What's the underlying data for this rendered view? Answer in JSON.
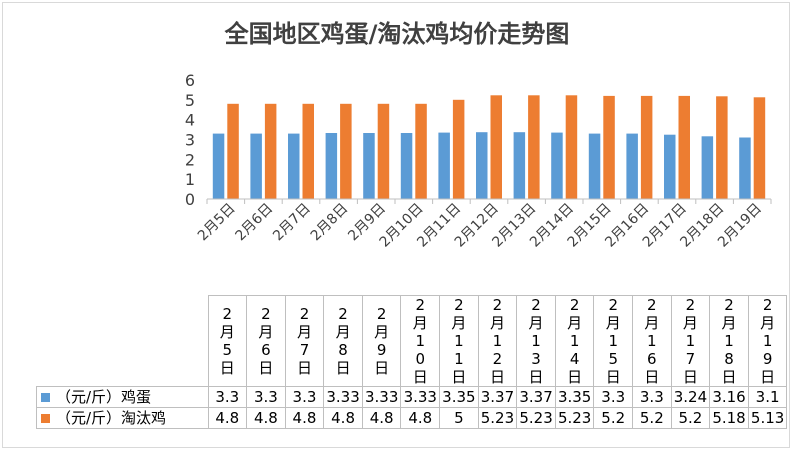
{
  "chart_data": {
    "type": "bar",
    "title": "全国地区鸡蛋/淘汰鸡均价走势图",
    "categories": [
      "2月5日",
      "2月6日",
      "2月7日",
      "2月8日",
      "2月9日",
      "2月10日",
      "2月11日",
      "2月12日",
      "2月13日",
      "2月14日",
      "2月15日",
      "2月16日",
      "2月17日",
      "2月18日",
      "2月19日"
    ],
    "series": [
      {
        "name": "（元/斤）鸡蛋",
        "color": "#5b9bd5",
        "values": [
          3.3,
          3.3,
          3.3,
          3.33,
          3.33,
          3.33,
          3.35,
          3.37,
          3.37,
          3.35,
          3.3,
          3.3,
          3.24,
          3.16,
          3.1
        ]
      },
      {
        "name": "（元/斤）淘汰鸡",
        "color": "#ed7d31",
        "values": [
          4.8,
          4.8,
          4.8,
          4.8,
          4.8,
          4.8,
          5,
          5.23,
          5.23,
          5.23,
          5.2,
          5.2,
          5.2,
          5.18,
          5.13
        ]
      }
    ],
    "ylim": [
      0,
      6
    ],
    "yticks": [
      0,
      1,
      2,
      3,
      4,
      5,
      6
    ],
    "grid": false,
    "legend": "data-table"
  }
}
